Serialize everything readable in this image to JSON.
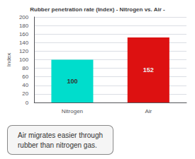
{
  "chart_data": {
    "type": "bar",
    "title": "Rubber penetration rate (Index) - Nitrogen vs. Air -",
    "ylabel": "Index",
    "categories": [
      "Nitrogen",
      "Air"
    ],
    "values": [
      100,
      152
    ],
    "colors": [
      "#00DDCC",
      "#DD1111"
    ],
    "ylim": [
      0,
      200
    ],
    "yticks": [
      0,
      20,
      40,
      60,
      80,
      100,
      120,
      140,
      160,
      180,
      200
    ],
    "grid": true,
    "data_labels": true,
    "annotation": "Air migrates easier through\nrubber than nitrogen gas."
  }
}
